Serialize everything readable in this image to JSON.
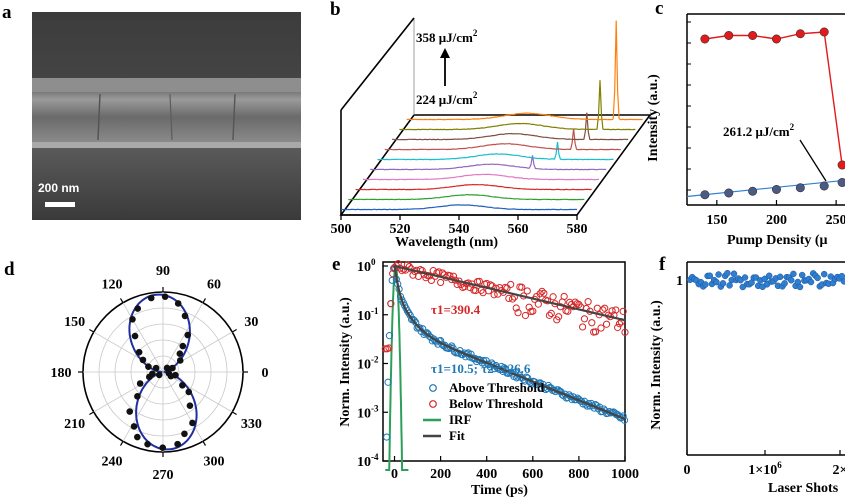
{
  "panels": {
    "a": "a",
    "b": "b",
    "c": "c",
    "d": "d",
    "e": "e",
    "f": "f"
  },
  "sem": {
    "scale_bar": "200 nm"
  },
  "chart_data": [
    {
      "id": "b",
      "type": "line",
      "xlabel": "Wavelength (nm)",
      "x_ticks": [
        "500",
        "520",
        "540",
        "560",
        "580"
      ],
      "xlim": [
        500,
        580
      ],
      "annotations": {
        "top": "358 μJ/cm",
        "bottom": "224 μJ/cm",
        "sup": "2"
      },
      "series_colors": [
        "#1f5fbf",
        "#2ca02c",
        "#d62728",
        "#e377c2",
        "#9467bd",
        "#17becf",
        "#c0504d",
        "#7f4f3f",
        "#7f7f00",
        "#ff7f0e"
      ],
      "peak_wavelengths": [
        0,
        0,
        0,
        0,
        555,
        561,
        564,
        566,
        568,
        571
      ],
      "peak_heights": [
        0,
        0,
        0,
        0,
        0.35,
        0.45,
        0.55,
        0.7,
        1.3,
        2.6
      ]
    },
    {
      "id": "c",
      "type": "line",
      "xlabel": "Pump Density (μ",
      "ylabel": "Intensity (a.u.)",
      "x_ticks": [
        "150",
        "200",
        "250"
      ],
      "xlim": [
        125,
        270
      ],
      "annotation": {
        "text": "261.2 μJ/cm",
        "sup": "2"
      },
      "series": [
        {
          "name": "above",
          "color": "#e31a1c",
          "x": [
            140,
            160,
            180,
            200,
            220,
            240,
            255
          ],
          "y": [
            0.92,
            0.94,
            0.94,
            0.92,
            0.95,
            0.96,
            0.2
          ]
        },
        {
          "name": "below",
          "color": "#4c5a86",
          "x": [
            140,
            160,
            180,
            200,
            220,
            240,
            255
          ],
          "y": [
            0.03,
            0.04,
            0.05,
            0.06,
            0.07,
            0.08,
            0.1
          ]
        }
      ]
    },
    {
      "id": "d",
      "type": "scatter",
      "angle_labels": [
        "90",
        "60",
        "30",
        "0",
        "330",
        "300",
        "270",
        "240",
        "210",
        "180",
        "150",
        "120"
      ],
      "angles_deg": [
        90,
        60,
        30,
        0,
        330,
        300,
        270,
        240,
        210,
        180,
        150,
        120
      ],
      "point_color": "#111111",
      "fit_color": "#1f2fa0",
      "points": [
        [
          90,
          0.93
        ],
        [
          80,
          0.9
        ],
        [
          70,
          0.78
        ],
        [
          60,
          0.55
        ],
        [
          50,
          0.42
        ],
        [
          40,
          0.32
        ],
        [
          30,
          0.22
        ],
        [
          20,
          0.14
        ],
        [
          10,
          0.08
        ],
        [
          0,
          0.05
        ],
        [
          100,
          0.92
        ],
        [
          110,
          0.86
        ],
        [
          120,
          0.72
        ],
        [
          130,
          0.55
        ],
        [
          140,
          0.4
        ],
        [
          150,
          0.28
        ],
        [
          160,
          0.18
        ],
        [
          170,
          0.1
        ],
        [
          180,
          0.06
        ],
        [
          190,
          0.12
        ],
        [
          200,
          0.2
        ],
        [
          210,
          0.32
        ],
        [
          220,
          0.45
        ],
        [
          230,
          0.6
        ],
        [
          240,
          0.78
        ],
        [
          250,
          0.88
        ],
        [
          260,
          0.95
        ],
        [
          270,
          0.97
        ],
        [
          280,
          0.9
        ],
        [
          290,
          0.86
        ],
        [
          300,
          0.74
        ],
        [
          310,
          0.58
        ],
        [
          320,
          0.42
        ],
        [
          330,
          0.3
        ],
        [
          340,
          0.2
        ],
        [
          350,
          0.1
        ]
      ]
    },
    {
      "id": "e",
      "type": "line",
      "xlabel": "Time (ps)",
      "ylabel": "Norm. Intensity (a.u.)",
      "x_ticks": [
        "0",
        "200",
        "400",
        "600",
        "800",
        "1000"
      ],
      "y_ticks": [
        [
          "10",
          "0"
        ],
        [
          "10",
          "-1"
        ],
        [
          "10",
          "-2"
        ],
        [
          "10",
          "-3"
        ],
        [
          "10",
          "-4"
        ]
      ],
      "xlim": [
        -50,
        1000
      ],
      "ylim_log10": [
        -4,
        0
      ],
      "tau_red": "τ1=390.4",
      "tau_blue": "τ1=10.5; τ2=226.6",
      "legend": [
        "Above Threshold",
        "Below Threshold",
        "IRF",
        "Fit"
      ],
      "colors": {
        "above": "#1f77b4",
        "below": "#d62728",
        "irf": "#2ca05a",
        "fit": "#444444"
      },
      "above_fit": {
        "a1": 0.7,
        "tau1": 10.5,
        "a2": 0.06,
        "tau2": 226.6
      },
      "below_fit": {
        "a1": 1.0,
        "tau1": 390.4
      }
    },
    {
      "id": "f",
      "type": "scatter",
      "xlabel": "Laser Shots",
      "ylabel": "Norm. Intensity (a.u.)",
      "x_ticks": [
        "0",
        "1×10",
        "2×"
      ],
      "x_tick_sup": "6",
      "y_tick": "1",
      "color": "#2f7fd0",
      "y_level": 1.0
    }
  ]
}
